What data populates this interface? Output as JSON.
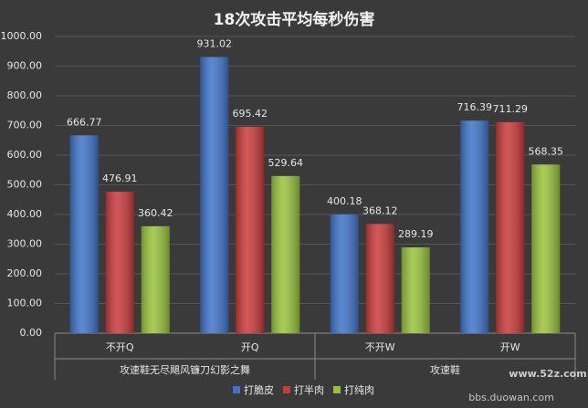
{
  "chart_data": {
    "type": "bar",
    "title": "18次攻击平均每秒伤害",
    "categories": [
      "不开Q",
      "开Q",
      "不开W",
      "开W"
    ],
    "group_labels": [
      "攻速鞋无尽飓风镰刀幻影之舞",
      "攻速鞋"
    ],
    "series": [
      {
        "name": "打脆皮",
        "color": "#3f73c8",
        "values": [
          666.77,
          931.02,
          400.18,
          716.39
        ]
      },
      {
        "name": "打半肉",
        "color": "#c83a3a",
        "values": [
          476.91,
          695.42,
          368.12,
          711.29
        ]
      },
      {
        "name": "打纯肉",
        "color": "#98c23c",
        "values": [
          360.42,
          529.64,
          289.19,
          568.35
        ]
      }
    ],
    "ylim": [
      0,
      1000
    ],
    "yticks": [
      {
        "value": 0,
        "label": "0.00"
      },
      {
        "value": 100,
        "label": "100.00"
      },
      {
        "value": 200,
        "label": "200.00"
      },
      {
        "value": 300,
        "label": "300.00"
      },
      {
        "value": 400,
        "label": "400.00"
      },
      {
        "value": 500,
        "label": "500.00"
      },
      {
        "value": 600,
        "label": "600.00"
      },
      {
        "value": 700,
        "label": "700.00"
      },
      {
        "value": 800,
        "label": "800.00"
      },
      {
        "value": 900,
        "label": "900.00"
      },
      {
        "value": 1000,
        "label": "1000.00"
      }
    ],
    "grid": true
  },
  "watermarks": [
    "www.52z.com",
    "bbs.duowan.com"
  ]
}
